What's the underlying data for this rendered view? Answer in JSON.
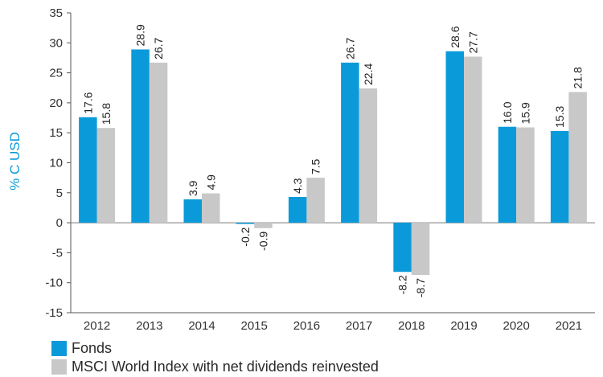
{
  "chart_data": {
    "type": "bar",
    "ylabel": "% C USD",
    "ylim": [
      -15,
      35
    ],
    "yticks": [
      35,
      30,
      25,
      20,
      15,
      10,
      5,
      0,
      -5,
      -10,
      -15
    ],
    "categories": [
      "2012",
      "2013",
      "2014",
      "2015",
      "2016",
      "2017",
      "2018",
      "2019",
      "2020",
      "2021"
    ],
    "series": [
      {
        "name": "Fonds",
        "color": "#0a9ad9",
        "values": [
          17.6,
          28.9,
          3.9,
          -0.2,
          4.3,
          26.7,
          -8.2,
          28.6,
          16.0,
          15.3
        ],
        "labels": [
          "17.6",
          "28.9",
          "3.9",
          "-0.2",
          "4.3",
          "26.7",
          "-8.2",
          "28.6",
          "16.0",
          "15.3"
        ]
      },
      {
        "name": "MSCI World Index with net dividends reinvested",
        "color": "#c8c8c8",
        "values": [
          15.8,
          26.7,
          4.9,
          -0.9,
          7.5,
          22.4,
          -8.7,
          27.7,
          15.9,
          21.8
        ],
        "labels": [
          "15.8",
          "26.7",
          "4.9",
          "-0.9",
          "7.5",
          "22.4",
          "-8.7",
          "27.7",
          "15.9",
          "21.8"
        ]
      }
    ],
    "grid": false,
    "legend_position": "bottom-left",
    "ylabel_color": "#0a9ad9"
  }
}
